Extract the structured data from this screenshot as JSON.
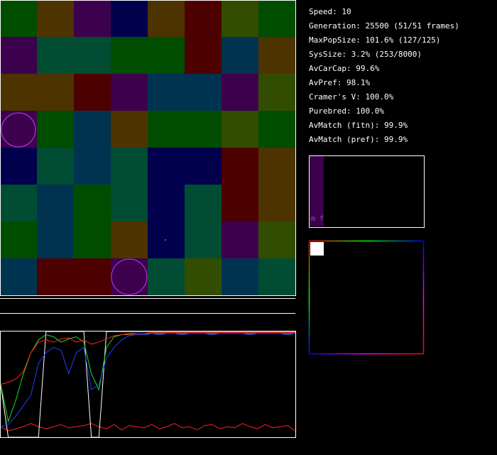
{
  "board": {
    "cells": [
      [
        "#004d00",
        "#4d3300",
        "#3d004d",
        "#00004d",
        "#4d3300",
        "#4d0000",
        "#334d00",
        "#004d00"
      ],
      [
        "#3d004d",
        "#004d33",
        "#004d33",
        "#004d00",
        "#004d00",
        "#4d0000",
        "#003350",
        "#4d3300"
      ],
      [
        "#4d3300",
        "#4d3300",
        "#4d0000",
        "#3d004d",
        "#003350",
        "#003350",
        "#3d004d",
        "#334d00"
      ],
      [
        "#3d004d",
        "#004d00",
        "#003350",
        "#4d3300",
        "#004d00",
        "#004d00",
        "#334d00",
        "#004d00"
      ],
      [
        "#00004d",
        "#004d33",
        "#003350",
        "#004d33",
        "#00004d",
        "#00004d",
        "#4d0000",
        "#4d3300"
      ],
      [
        "#004d33",
        "#003350",
        "#004d00",
        "#004d33",
        "#00004d",
        "#004d33",
        "#4d0000",
        "#4d3300"
      ],
      [
        "#004d00",
        "#003350",
        "#004d00",
        "#4d3300",
        "#00004d",
        "#004d33",
        "#3d004d",
        "#334d00"
      ],
      [
        "#003350",
        "#4d0000",
        "#4d0000",
        "#3d004d",
        "#004d33",
        "#334d00",
        "#003350",
        "#004d33"
      ]
    ]
  },
  "stats": [
    "Speed: 10",
    "Generation: 25500 (51/51 frames)",
    "MaxPopSize: 101.6% (127/125)",
    "SysSize: 3.2% (253/8000)",
    "AvCarCap: 99.6%",
    "AvPref: 98.1%",
    "Cramer's V: 100.0%",
    "Purebred: 100.0%",
    "AvMatch (fitn): 99.9%",
    "AvMatch (pref): 99.9%"
  ],
  "sex_panel_label": "m f",
  "chart_data": {
    "type": "line",
    "ylim": [
      0,
      1
    ],
    "series": [
      {
        "color": "#ff2020",
        "values": [
          0.1,
          0.06,
          0.08,
          0.1,
          0.13,
          0.1,
          0.08,
          0.1,
          0.12,
          0.09,
          0.1,
          0.11,
          0.13,
          0.1,
          0.08,
          0.12,
          0.07,
          0.11,
          0.1,
          0.09,
          0.12,
          0.08,
          0.1,
          0.13,
          0.09,
          0.1,
          0.07,
          0.11,
          0.12,
          0.08,
          0.1,
          0.09,
          0.13,
          0.1,
          0.08,
          0.12,
          0.09,
          0.1,
          0.11,
          0.06
        ]
      },
      {
        "color": "#ffffff",
        "values": [
          0.5,
          0,
          0,
          0,
          0,
          0,
          1,
          1,
          1,
          1,
          1,
          1,
          0,
          0,
          1,
          1,
          1,
          1,
          1,
          1,
          1,
          1,
          1,
          1,
          1,
          1,
          1,
          1,
          1,
          1,
          1,
          1,
          1,
          1,
          1,
          1,
          1,
          1,
          1,
          1
        ]
      },
      {
        "color": "#20e020",
        "values": [
          0.5,
          0.15,
          0.35,
          0.6,
          0.8,
          0.92,
          0.97,
          0.95,
          0.9,
          0.93,
          0.95,
          0.9,
          0.6,
          0.45,
          0.85,
          0.95,
          0.97,
          0.98,
          0.98,
          0.98,
          0.98,
          0.98,
          0.98,
          0.98,
          0.98,
          0.98,
          0.98,
          0.98,
          0.98,
          0.98,
          0.98,
          0.98,
          0.98,
          0.98,
          0.98,
          0.98,
          0.98,
          0.98,
          0.98,
          0.98
        ]
      },
      {
        "color": "#ff2020",
        "values": [
          0.5,
          0.52,
          0.55,
          0.62,
          0.8,
          0.9,
          0.92,
          0.9,
          0.93,
          0.94,
          0.9,
          0.92,
          0.88,
          0.9,
          0.93,
          0.96,
          0.97,
          0.97,
          0.98,
          0.98,
          0.99,
          0.99,
          0.99,
          0.99,
          0.99,
          0.99,
          0.99,
          0.99,
          0.99,
          0.99,
          0.99,
          0.99,
          0.99,
          0.99,
          0.99,
          0.99,
          0.99,
          0.99,
          0.99,
          0.99
        ]
      },
      {
        "color": "#2040ff",
        "values": [
          0.1,
          0.12,
          0.2,
          0.3,
          0.4,
          0.7,
          0.8,
          0.85,
          0.82,
          0.6,
          0.8,
          0.85,
          0.45,
          0.5,
          0.75,
          0.85,
          0.92,
          0.96,
          0.97,
          0.97,
          0.98,
          0.97,
          0.98,
          0.98,
          0.97,
          0.98,
          0.98,
          0.98,
          0.97,
          0.98,
          0.98,
          0.98,
          0.98,
          0.97,
          0.98,
          0.98,
          0.98,
          0.98,
          0.97,
          0.98
        ]
      }
    ]
  }
}
